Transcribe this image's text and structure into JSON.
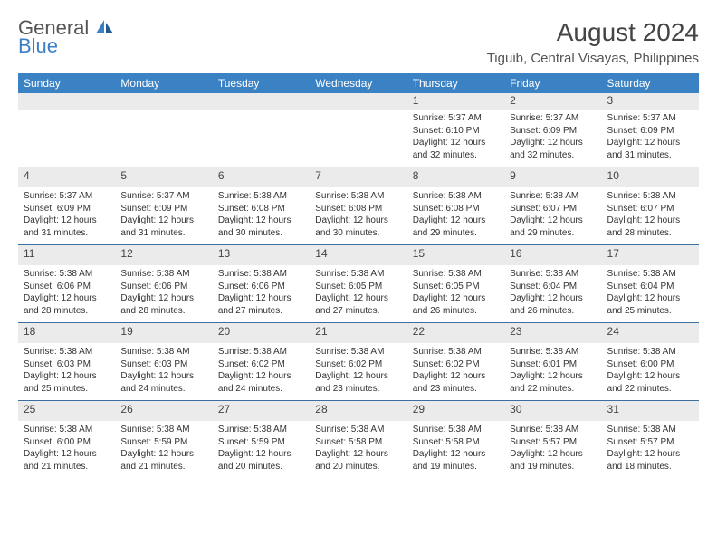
{
  "logo": {
    "general": "General",
    "blue": "Blue"
  },
  "title": "August 2024",
  "location": "Tiguib, Central Visayas, Philippines",
  "weekdays": [
    "Sunday",
    "Monday",
    "Tuesday",
    "Wednesday",
    "Thursday",
    "Friday",
    "Saturday"
  ],
  "colors": {
    "header_bg": "#3b82c4",
    "header_fg": "#ffffff",
    "daynum_bg": "#ebebeb",
    "row_border": "#3b6fa0",
    "text": "#333333",
    "logo_blue": "#3b7fc4"
  },
  "weeks": [
    [
      null,
      null,
      null,
      null,
      {
        "n": "1",
        "sr": "5:37 AM",
        "ss": "6:10 PM",
        "d1": "12 hours",
        "d2": "and 32 minutes."
      },
      {
        "n": "2",
        "sr": "5:37 AM",
        "ss": "6:09 PM",
        "d1": "12 hours",
        "d2": "and 32 minutes."
      },
      {
        "n": "3",
        "sr": "5:37 AM",
        "ss": "6:09 PM",
        "d1": "12 hours",
        "d2": "and 31 minutes."
      }
    ],
    [
      {
        "n": "4",
        "sr": "5:37 AM",
        "ss": "6:09 PM",
        "d1": "12 hours",
        "d2": "and 31 minutes."
      },
      {
        "n": "5",
        "sr": "5:37 AM",
        "ss": "6:09 PM",
        "d1": "12 hours",
        "d2": "and 31 minutes."
      },
      {
        "n": "6",
        "sr": "5:38 AM",
        "ss": "6:08 PM",
        "d1": "12 hours",
        "d2": "and 30 minutes."
      },
      {
        "n": "7",
        "sr": "5:38 AM",
        "ss": "6:08 PM",
        "d1": "12 hours",
        "d2": "and 30 minutes."
      },
      {
        "n": "8",
        "sr": "5:38 AM",
        "ss": "6:08 PM",
        "d1": "12 hours",
        "d2": "and 29 minutes."
      },
      {
        "n": "9",
        "sr": "5:38 AM",
        "ss": "6:07 PM",
        "d1": "12 hours",
        "d2": "and 29 minutes."
      },
      {
        "n": "10",
        "sr": "5:38 AM",
        "ss": "6:07 PM",
        "d1": "12 hours",
        "d2": "and 28 minutes."
      }
    ],
    [
      {
        "n": "11",
        "sr": "5:38 AM",
        "ss": "6:06 PM",
        "d1": "12 hours",
        "d2": "and 28 minutes."
      },
      {
        "n": "12",
        "sr": "5:38 AM",
        "ss": "6:06 PM",
        "d1": "12 hours",
        "d2": "and 28 minutes."
      },
      {
        "n": "13",
        "sr": "5:38 AM",
        "ss": "6:06 PM",
        "d1": "12 hours",
        "d2": "and 27 minutes."
      },
      {
        "n": "14",
        "sr": "5:38 AM",
        "ss": "6:05 PM",
        "d1": "12 hours",
        "d2": "and 27 minutes."
      },
      {
        "n": "15",
        "sr": "5:38 AM",
        "ss": "6:05 PM",
        "d1": "12 hours",
        "d2": "and 26 minutes."
      },
      {
        "n": "16",
        "sr": "5:38 AM",
        "ss": "6:04 PM",
        "d1": "12 hours",
        "d2": "and 26 minutes."
      },
      {
        "n": "17",
        "sr": "5:38 AM",
        "ss": "6:04 PM",
        "d1": "12 hours",
        "d2": "and 25 minutes."
      }
    ],
    [
      {
        "n": "18",
        "sr": "5:38 AM",
        "ss": "6:03 PM",
        "d1": "12 hours",
        "d2": "and 25 minutes."
      },
      {
        "n": "19",
        "sr": "5:38 AM",
        "ss": "6:03 PM",
        "d1": "12 hours",
        "d2": "and 24 minutes."
      },
      {
        "n": "20",
        "sr": "5:38 AM",
        "ss": "6:02 PM",
        "d1": "12 hours",
        "d2": "and 24 minutes."
      },
      {
        "n": "21",
        "sr": "5:38 AM",
        "ss": "6:02 PM",
        "d1": "12 hours",
        "d2": "and 23 minutes."
      },
      {
        "n": "22",
        "sr": "5:38 AM",
        "ss": "6:02 PM",
        "d1": "12 hours",
        "d2": "and 23 minutes."
      },
      {
        "n": "23",
        "sr": "5:38 AM",
        "ss": "6:01 PM",
        "d1": "12 hours",
        "d2": "and 22 minutes."
      },
      {
        "n": "24",
        "sr": "5:38 AM",
        "ss": "6:00 PM",
        "d1": "12 hours",
        "d2": "and 22 minutes."
      }
    ],
    [
      {
        "n": "25",
        "sr": "5:38 AM",
        "ss": "6:00 PM",
        "d1": "12 hours",
        "d2": "and 21 minutes."
      },
      {
        "n": "26",
        "sr": "5:38 AM",
        "ss": "5:59 PM",
        "d1": "12 hours",
        "d2": "and 21 minutes."
      },
      {
        "n": "27",
        "sr": "5:38 AM",
        "ss": "5:59 PM",
        "d1": "12 hours",
        "d2": "and 20 minutes."
      },
      {
        "n": "28",
        "sr": "5:38 AM",
        "ss": "5:58 PM",
        "d1": "12 hours",
        "d2": "and 20 minutes."
      },
      {
        "n": "29",
        "sr": "5:38 AM",
        "ss": "5:58 PM",
        "d1": "12 hours",
        "d2": "and 19 minutes."
      },
      {
        "n": "30",
        "sr": "5:38 AM",
        "ss": "5:57 PM",
        "d1": "12 hours",
        "d2": "and 19 minutes."
      },
      {
        "n": "31",
        "sr": "5:38 AM",
        "ss": "5:57 PM",
        "d1": "12 hours",
        "d2": "and 18 minutes."
      }
    ]
  ],
  "labels": {
    "sunrise": "Sunrise: ",
    "sunset": "Sunset: ",
    "daylight": "Daylight: "
  }
}
